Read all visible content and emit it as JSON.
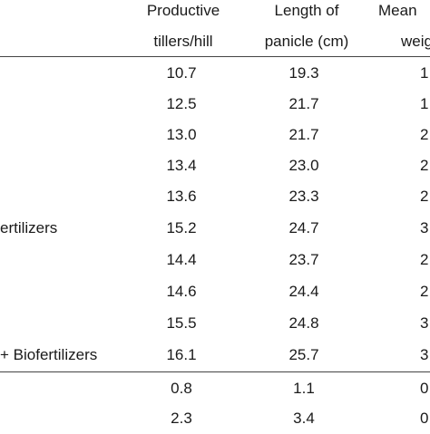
{
  "header": {
    "col1": [
      "Productive",
      "tillers/hill"
    ],
    "col2": [
      "Length of",
      "panicle (cm)"
    ],
    "col3": [
      "Mean",
      "weig"
    ]
  },
  "rows": [
    {
      "label": "",
      "c1": "10.7",
      "c2": "19.3",
      "c3": "1"
    },
    {
      "label": "",
      "c1": "12.5",
      "c2": "21.7",
      "c3": "1"
    },
    {
      "label": "",
      "c1": "13.0",
      "c2": "21.7",
      "c3": "2"
    },
    {
      "label": "",
      "c1": "13.4",
      "c2": "23.0",
      "c3": "2"
    },
    {
      "label": "",
      "c1": "13.6",
      "c2": "23.3",
      "c3": "2"
    },
    {
      "label": "ertilizers",
      "c1": "15.2",
      "c2": "24.7",
      "c3": "3"
    },
    {
      "label": "",
      "c1": "14.4",
      "c2": "23.7",
      "c3": "2"
    },
    {
      "label": "",
      "c1": "14.6",
      "c2": "24.4",
      "c3": "2"
    },
    {
      "label": "",
      "c1": "15.5",
      "c2": "24.8",
      "c3": "3"
    },
    {
      "label": "+ Biofertilizers",
      "c1": "16.1",
      "c2": "25.7",
      "c3": "3"
    }
  ],
  "stats": [
    {
      "label": "",
      "c1": "0.8",
      "c2": "1.1",
      "c3": "0"
    },
    {
      "label": "",
      "c1": "2.3",
      "c2": "3.4",
      "c3": "0"
    }
  ]
}
